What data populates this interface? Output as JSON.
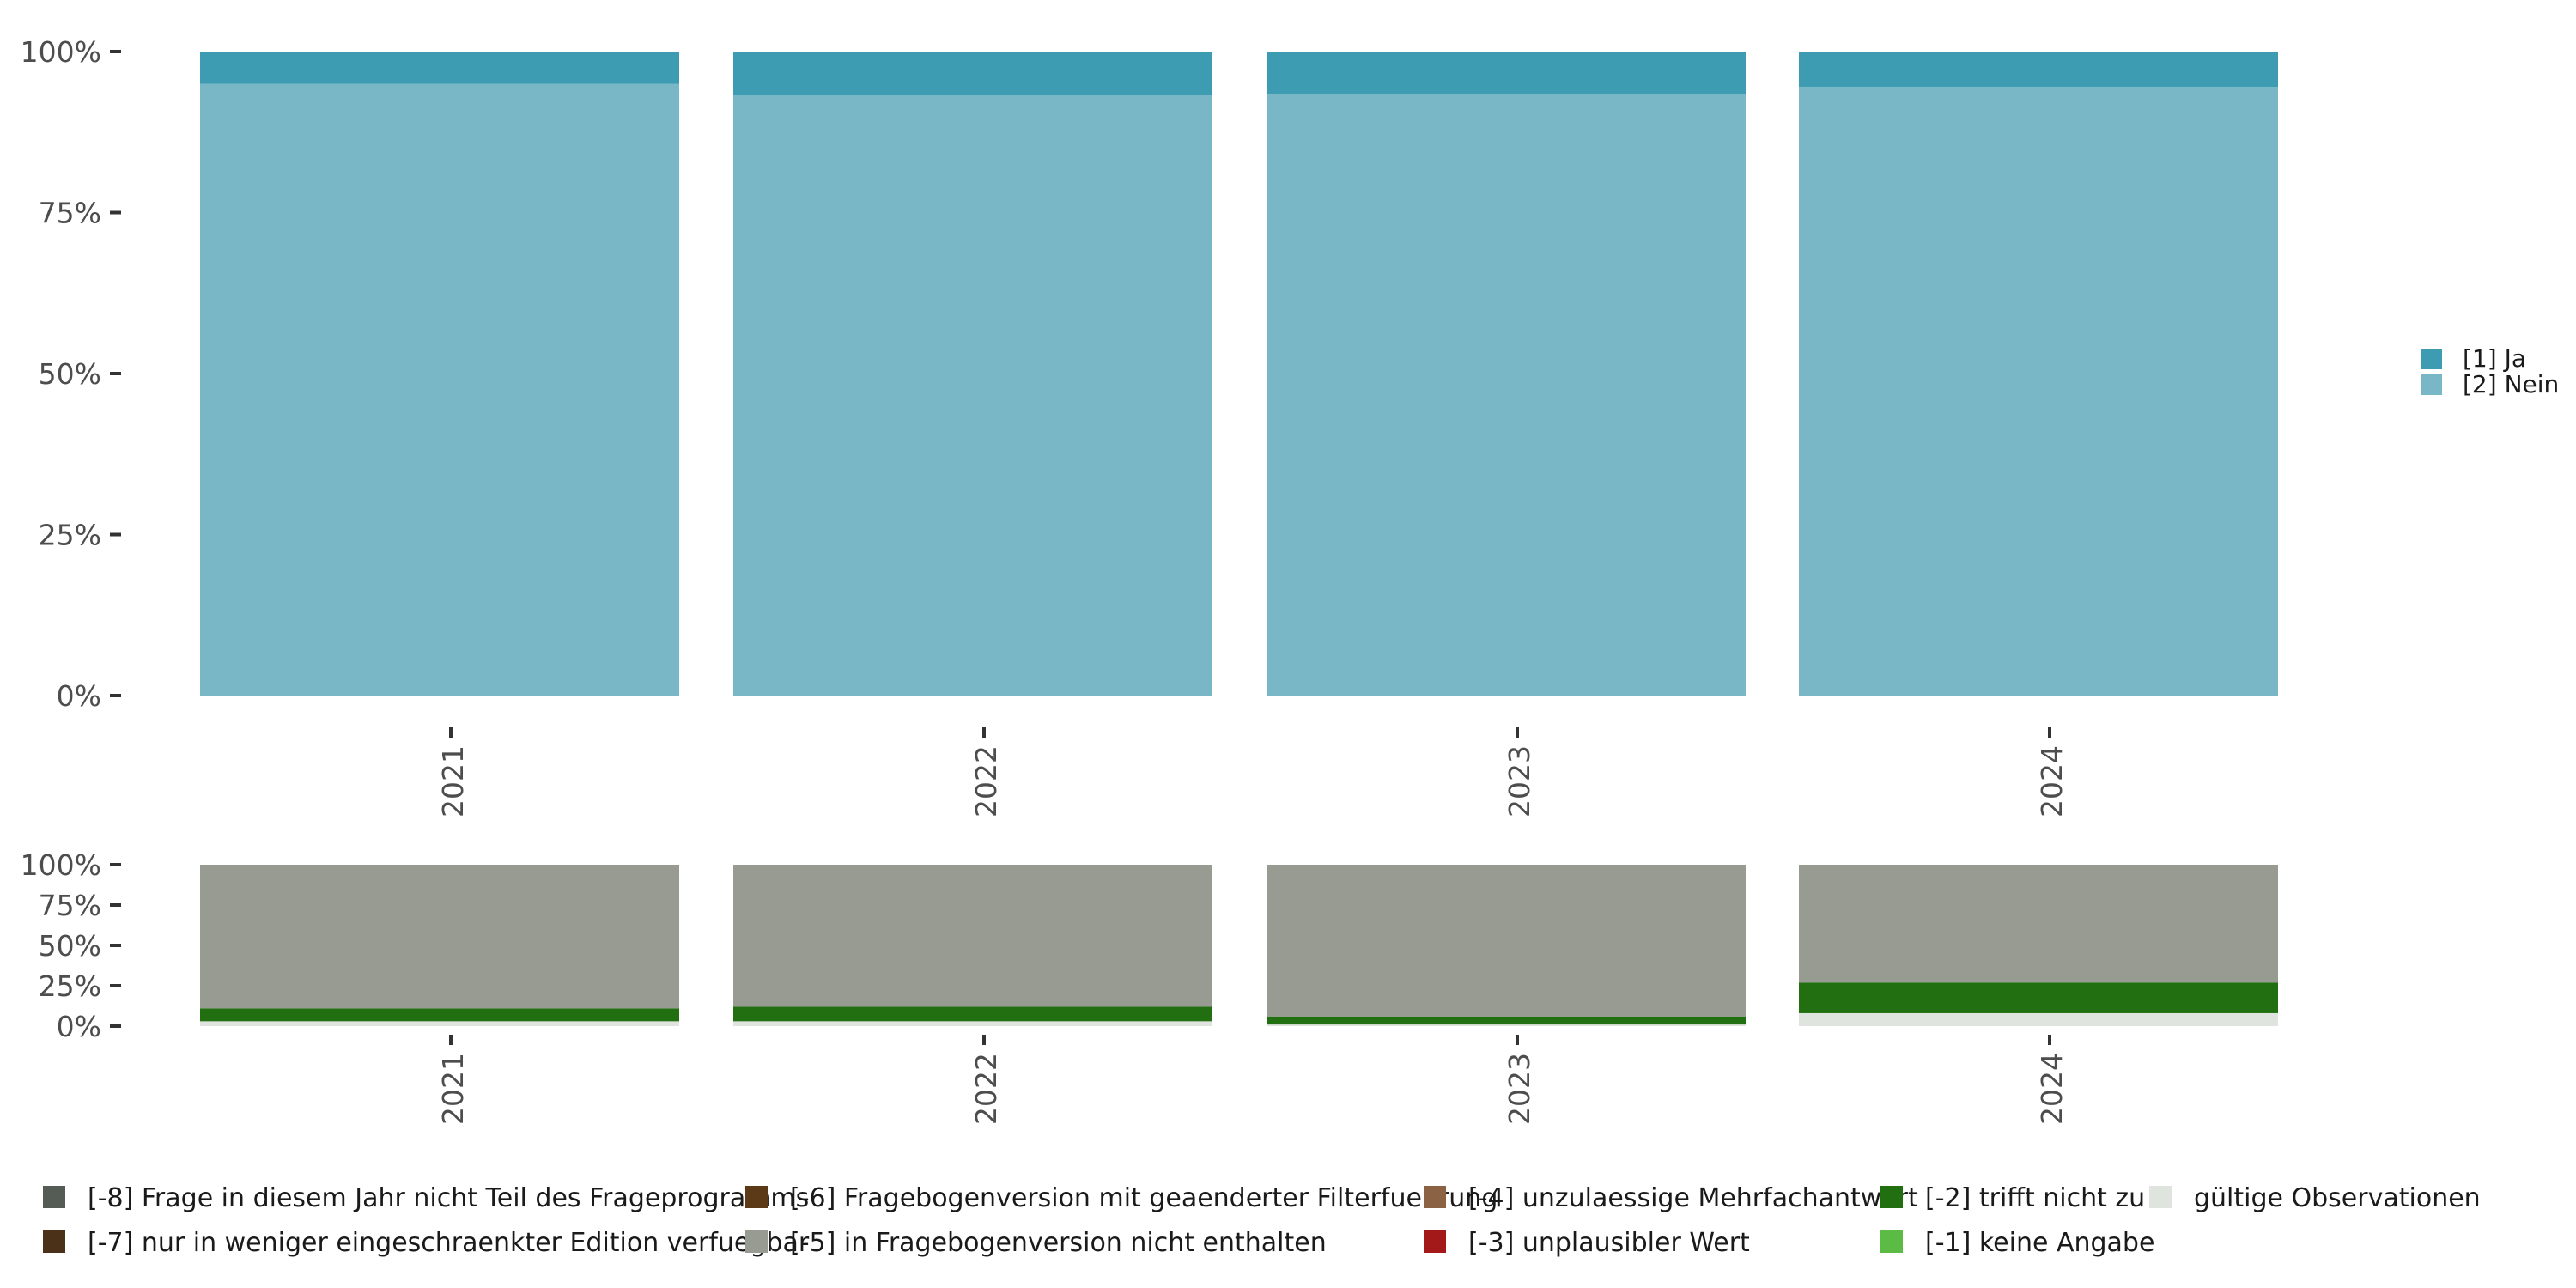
{
  "chart_data": [
    {
      "type": "bar",
      "stacked": true,
      "orientation": "vertical",
      "categories": [
        "2021",
        "2022",
        "2023",
        "2024"
      ],
      "series": [
        {
          "name": "[2] Nein",
          "color": "#79b7c6",
          "values": [
            0.95,
            0.932,
            0.934,
            0.945
          ]
        },
        {
          "name": "[1] Ja",
          "color": "#3d9bb2",
          "values": [
            0.05,
            0.068,
            0.066,
            0.055
          ]
        }
      ],
      "y_ticks": [
        "0%",
        "25%",
        "50%",
        "75%",
        "100%"
      ],
      "ylim": [
        0,
        1
      ],
      "legend_position": "right"
    },
    {
      "type": "bar",
      "stacked": true,
      "orientation": "vertical",
      "categories": [
        "2021",
        "2022",
        "2023",
        "2024"
      ],
      "series": [
        {
          "name": "gültige Observationen",
          "color": "#e0e4de",
          "values": [
            0.03,
            0.03,
            0.01,
            0.08
          ]
        },
        {
          "name": "[-2] trifft nicht zu",
          "color": "#226f11",
          "values": [
            0.08,
            0.09,
            0.05,
            0.19
          ]
        },
        {
          "name": "[-5] in Fragebogenversion nicht enthalten",
          "color": "#979b92",
          "values": [
            0.89,
            0.88,
            0.94,
            0.73
          ]
        }
      ],
      "y_ticks": [
        "0%",
        "25%",
        "50%",
        "75%",
        "100%"
      ],
      "ylim": [
        0,
        1
      ],
      "legend_position": "bottom"
    }
  ],
  "bottom_legend": [
    {
      "label": "[-8] Frage in diesem Jahr nicht Teil des Frageprogramms",
      "color": "#555b55"
    },
    {
      "label": "[-7] nur in weniger eingeschraenkter Edition verfuegbar",
      "color": "#4b3118"
    },
    {
      "label": "[-6] Fragebogenversion mit geaenderter Filterfuehrung",
      "color": "#5c3a17"
    },
    {
      "label": "[-5] in Fragebogenversion nicht enthalten",
      "color": "#979b92"
    },
    {
      "label": "[-4] unzulaessige Mehrfachantwort",
      "color": "#8c6244"
    },
    {
      "label": "[-3] unplausibler Wert",
      "color": "#a3191a"
    },
    {
      "label": "[-2] trifft nicht zu",
      "color": "#226f11"
    },
    {
      "label": "[-1] keine Angabe",
      "color": "#5cbb45"
    },
    {
      "label": "gültige Observationen",
      "color": "#e0e4de"
    }
  ]
}
